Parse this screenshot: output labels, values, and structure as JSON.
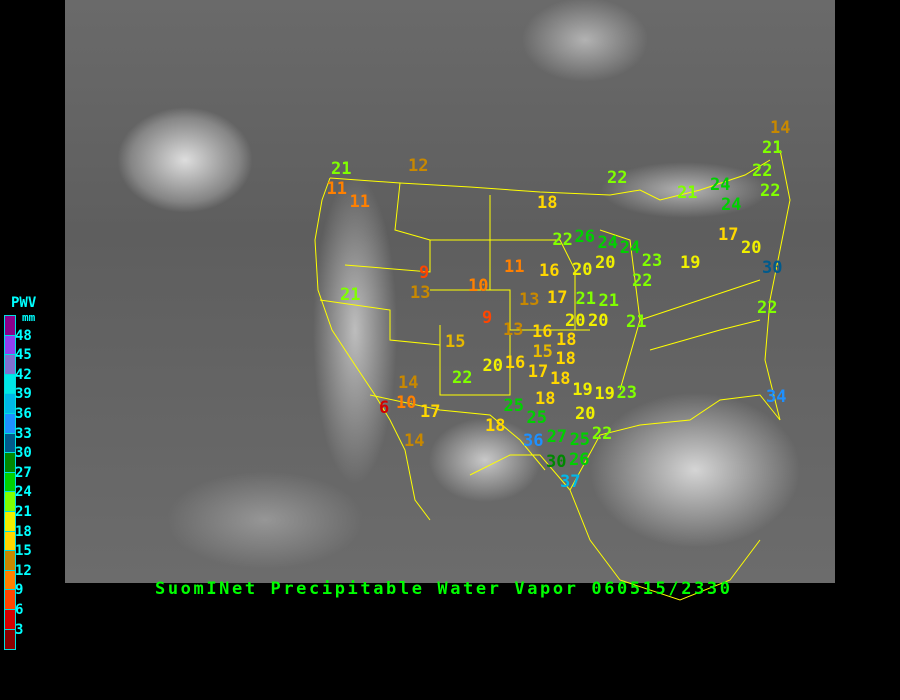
{
  "title": "SuomINet Precipitable Water Vapor 060515/2330",
  "legend": {
    "title": "PWV",
    "unit": "mm",
    "labels": [
      "48",
      "45",
      "42",
      "39",
      "36",
      "33",
      "30",
      "27",
      "24",
      "21",
      "18",
      "15",
      "12",
      "9",
      "6",
      "3"
    ],
    "colors": [
      "#8b008b",
      "#9040f0",
      "#8070d0",
      "#00e8e8",
      "#00b8e8",
      "#1e90ff",
      "#005a8c",
      "#008800",
      "#00d000",
      "#80ff00",
      "#f0f000",
      "#ffd700",
      "#c88800",
      "#ff8000",
      "#ff4500",
      "#d40000",
      "#8b0000"
    ]
  },
  "stations": [
    "21",
    "11",
    "11",
    "12",
    "9",
    "13",
    "10",
    "11",
    "21",
    "18",
    "22",
    "26",
    "24",
    "20",
    "20",
    "16",
    "13",
    "17",
    "21",
    "21",
    "9",
    "13",
    "16",
    "20",
    "20",
    "15",
    "18",
    "15",
    "18",
    "20",
    "16",
    "17",
    "18",
    "22",
    "14",
    "10",
    "6",
    "17",
    "14",
    "18",
    "19",
    "19",
    "23",
    "25",
    "25",
    "18",
    "20",
    "22",
    "36",
    "27",
    "25",
    "30",
    "26",
    "37",
    "23",
    "22",
    "21",
    "24",
    "19",
    "14",
    "21",
    "22",
    "21",
    "24",
    "22",
    "22",
    "24",
    "17",
    "20",
    "30",
    "22",
    "34"
  ]
}
